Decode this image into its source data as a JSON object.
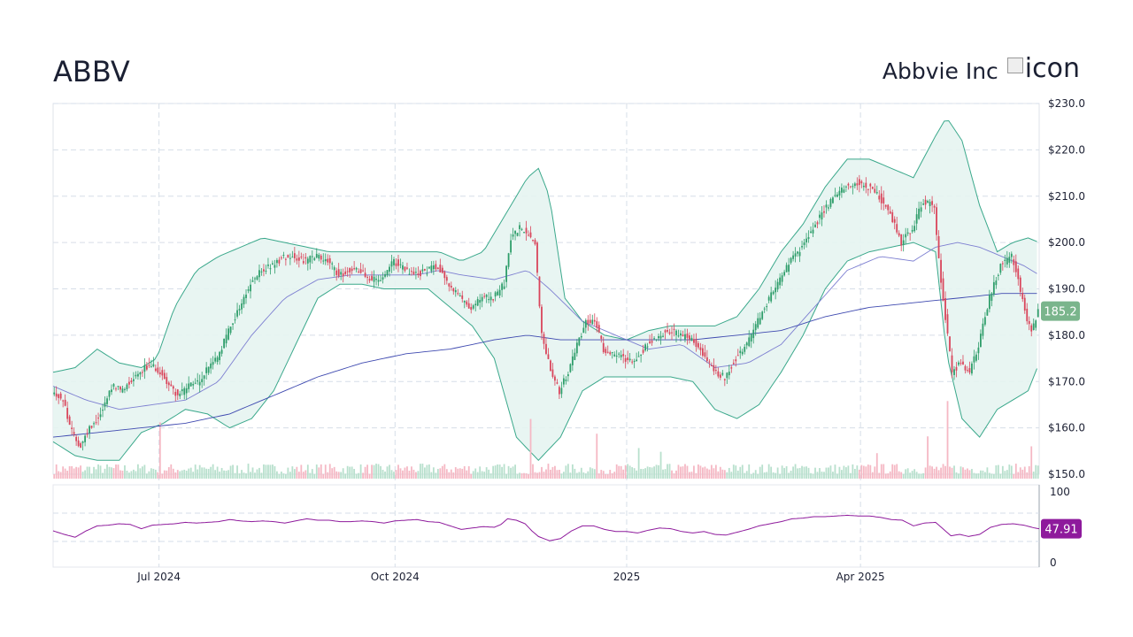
{
  "header": {
    "ticker": "ABBV",
    "company_name": "Abbvie Inc",
    "logo_alt": "icon"
  },
  "colors": {
    "up": "#26a69a",
    "down": "#ef5350",
    "up_candle": "#2f9e6b",
    "down_candle": "#d9455b",
    "bb_fill": "#e6f4f1",
    "bb_line": "#3aa88b",
    "ma_short": "#7d7fd1",
    "ma_long": "#3f4ab0",
    "rsi_line": "#8e1a9c",
    "price_badge": "#7ab58c",
    "rsi_badge": "#8e1a9c"
  },
  "chart_data": {
    "type": "candlestick",
    "title": "ABBV",
    "x_ticks": [
      "Jul 2024",
      "Oct 2024",
      "2025",
      "Apr 2025"
    ],
    "price_axis": {
      "ticks": [
        "$230.0",
        "$220.0",
        "$210.0",
        "$200.0",
        "$190.0",
        "$180.0",
        "$170.0",
        "$160.0",
        "$150.0"
      ],
      "ylim": [
        150,
        230
      ]
    },
    "last_price_label": "185.2",
    "rsi": {
      "ticks": [
        "100",
        "0"
      ],
      "ylim": [
        0,
        100
      ],
      "last_label": "47.91",
      "bands": [
        70,
        30
      ]
    },
    "close_path": [
      [
        0,
        168
      ],
      [
        5,
        166
      ],
      [
        9,
        159
      ],
      [
        13,
        156
      ],
      [
        17,
        160
      ],
      [
        22,
        163
      ],
      [
        27,
        169
      ],
      [
        32,
        168
      ],
      [
        37,
        171
      ],
      [
        42,
        173
      ],
      [
        47,
        173
      ],
      [
        52,
        170
      ],
      [
        57,
        167
      ],
      [
        62,
        169
      ],
      [
        67,
        170
      ],
      [
        72,
        174
      ],
      [
        75,
        175
      ],
      [
        80,
        181
      ],
      [
        85,
        186
      ],
      [
        90,
        191
      ],
      [
        95,
        194
      ],
      [
        100,
        195
      ],
      [
        105,
        197
      ],
      [
        110,
        197
      ],
      [
        115,
        196
      ],
      [
        120,
        197
      ],
      [
        125,
        196
      ],
      [
        130,
        193
      ],
      [
        135,
        194
      ],
      [
        140,
        194
      ],
      [
        145,
        192
      ],
      [
        150,
        192
      ],
      [
        155,
        196
      ],
      [
        160,
        194
      ],
      [
        165,
        193
      ],
      [
        170,
        194
      ],
      [
        175,
        195
      ],
      [
        180,
        191
      ],
      [
        185,
        188
      ],
      [
        190,
        186
      ],
      [
        195,
        188
      ],
      [
        200,
        188
      ],
      [
        205,
        191
      ],
      [
        208,
        201
      ],
      [
        212,
        203
      ],
      [
        216,
        202
      ],
      [
        219,
        200
      ],
      [
        222,
        180
      ],
      [
        226,
        173
      ],
      [
        230,
        168
      ],
      [
        234,
        172
      ],
      [
        238,
        178
      ],
      [
        242,
        183
      ],
      [
        246,
        183
      ],
      [
        250,
        177
      ],
      [
        255,
        176
      ],
      [
        260,
        175
      ],
      [
        265,
        175
      ],
      [
        270,
        178
      ],
      [
        275,
        180
      ],
      [
        280,
        181
      ],
      [
        285,
        180
      ],
      [
        290,
        179
      ],
      [
        295,
        176
      ],
      [
        300,
        172
      ],
      [
        305,
        171
      ],
      [
        310,
        175
      ],
      [
        315,
        178
      ],
      [
        320,
        183
      ],
      [
        325,
        188
      ],
      [
        330,
        192
      ],
      [
        335,
        196
      ],
      [
        340,
        199
      ],
      [
        345,
        203
      ],
      [
        350,
        207
      ],
      [
        355,
        210
      ],
      [
        360,
        212
      ],
      [
        365,
        213
      ],
      [
        370,
        212
      ],
      [
        375,
        210
      ],
      [
        380,
        206
      ],
      [
        385,
        200
      ],
      [
        390,
        203
      ],
      [
        395,
        209
      ],
      [
        400,
        208
      ],
      [
        402,
        196
      ],
      [
        405,
        184
      ],
      [
        408,
        172
      ],
      [
        412,
        174
      ],
      [
        416,
        172
      ],
      [
        420,
        178
      ],
      [
        425,
        188
      ],
      [
        430,
        195
      ],
      [
        435,
        197
      ],
      [
        438,
        192
      ],
      [
        441,
        185
      ],
      [
        444,
        181
      ],
      [
        447,
        185
      ]
    ],
    "bb_upper_path": [
      [
        0,
        172
      ],
      [
        10,
        173
      ],
      [
        20,
        177
      ],
      [
        30,
        174
      ],
      [
        40,
        173
      ],
      [
        47,
        175
      ],
      [
        55,
        186
      ],
      [
        65,
        194
      ],
      [
        75,
        197
      ],
      [
        85,
        199
      ],
      [
        95,
        201
      ],
      [
        105,
        200
      ],
      [
        115,
        199
      ],
      [
        125,
        198
      ],
      [
        135,
        198
      ],
      [
        145,
        198
      ],
      [
        155,
        198
      ],
      [
        165,
        198
      ],
      [
        175,
        198
      ],
      [
        185,
        196
      ],
      [
        195,
        198
      ],
      [
        205,
        206
      ],
      [
        215,
        214
      ],
      [
        220,
        216
      ],
      [
        225,
        210
      ],
      [
        232,
        188
      ],
      [
        240,
        183
      ],
      [
        250,
        180
      ],
      [
        260,
        179
      ],
      [
        270,
        181
      ],
      [
        280,
        182
      ],
      [
        290,
        182
      ],
      [
        300,
        182
      ],
      [
        310,
        184
      ],
      [
        320,
        190
      ],
      [
        330,
        198
      ],
      [
        340,
        204
      ],
      [
        350,
        212
      ],
      [
        360,
        218
      ],
      [
        370,
        218
      ],
      [
        380,
        216
      ],
      [
        390,
        214
      ],
      [
        400,
        223
      ],
      [
        405,
        227
      ],
      [
        412,
        222
      ],
      [
        420,
        208
      ],
      [
        428,
        198
      ],
      [
        435,
        200
      ],
      [
        442,
        201
      ],
      [
        447,
        200
      ]
    ],
    "bb_lower_path": [
      [
        0,
        157
      ],
      [
        10,
        154
      ],
      [
        20,
        153
      ],
      [
        30,
        153
      ],
      [
        40,
        159
      ],
      [
        50,
        161
      ],
      [
        60,
        164
      ],
      [
        70,
        163
      ],
      [
        80,
        160
      ],
      [
        90,
        162
      ],
      [
        100,
        168
      ],
      [
        110,
        178
      ],
      [
        120,
        188
      ],
      [
        130,
        191
      ],
      [
        140,
        191
      ],
      [
        150,
        190
      ],
      [
        160,
        190
      ],
      [
        170,
        190
      ],
      [
        180,
        186
      ],
      [
        190,
        182
      ],
      [
        200,
        175
      ],
      [
        210,
        158
      ],
      [
        220,
        153
      ],
      [
        230,
        158
      ],
      [
        240,
        168
      ],
      [
        250,
        171
      ],
      [
        260,
        171
      ],
      [
        270,
        171
      ],
      [
        280,
        171
      ],
      [
        290,
        170
      ],
      [
        300,
        164
      ],
      [
        310,
        162
      ],
      [
        320,
        165
      ],
      [
        330,
        172
      ],
      [
        340,
        180
      ],
      [
        350,
        190
      ],
      [
        360,
        196
      ],
      [
        370,
        198
      ],
      [
        380,
        199
      ],
      [
        390,
        200
      ],
      [
        400,
        198
      ],
      [
        405,
        176
      ],
      [
        412,
        162
      ],
      [
        420,
        158
      ],
      [
        428,
        164
      ],
      [
        435,
        166
      ],
      [
        442,
        168
      ],
      [
        447,
        174
      ]
    ],
    "ma_short_path": [
      [
        0,
        169
      ],
      [
        15,
        166
      ],
      [
        30,
        164
      ],
      [
        45,
        165
      ],
      [
        60,
        166
      ],
      [
        75,
        170
      ],
      [
        90,
        180
      ],
      [
        105,
        188
      ],
      [
        120,
        192
      ],
      [
        135,
        193
      ],
      [
        150,
        193
      ],
      [
        165,
        193
      ],
      [
        175,
        194
      ],
      [
        185,
        193
      ],
      [
        200,
        192
      ],
      [
        215,
        194
      ],
      [
        225,
        190
      ],
      [
        240,
        183
      ],
      [
        255,
        180
      ],
      [
        270,
        177
      ],
      [
        285,
        178
      ],
      [
        300,
        173
      ],
      [
        315,
        174
      ],
      [
        330,
        178
      ],
      [
        345,
        186
      ],
      [
        360,
        194
      ],
      [
        375,
        197
      ],
      [
        390,
        196
      ],
      [
        400,
        199
      ],
      [
        410,
        200
      ],
      [
        420,
        199
      ],
      [
        430,
        197
      ],
      [
        440,
        195
      ],
      [
        447,
        193
      ]
    ],
    "ma_long_path": [
      [
        0,
        158
      ],
      [
        20,
        159
      ],
      [
        40,
        160
      ],
      [
        60,
        161
      ],
      [
        80,
        163
      ],
      [
        100,
        167
      ],
      [
        120,
        171
      ],
      [
        140,
        174
      ],
      [
        160,
        176
      ],
      [
        180,
        177
      ],
      [
        200,
        179
      ],
      [
        215,
        180
      ],
      [
        230,
        179
      ],
      [
        250,
        179
      ],
      [
        270,
        179
      ],
      [
        290,
        179
      ],
      [
        310,
        180
      ],
      [
        330,
        181
      ],
      [
        350,
        184
      ],
      [
        370,
        186
      ],
      [
        390,
        187
      ],
      [
        410,
        188
      ],
      [
        430,
        189
      ],
      [
        447,
        189
      ]
    ],
    "rsi_path": [
      [
        0,
        45
      ],
      [
        5,
        40
      ],
      [
        10,
        36
      ],
      [
        15,
        45
      ],
      [
        20,
        52
      ],
      [
        25,
        53
      ],
      [
        30,
        55
      ],
      [
        35,
        54
      ],
      [
        40,
        48
      ],
      [
        45,
        53
      ],
      [
        50,
        54
      ],
      [
        55,
        55
      ],
      [
        60,
        57
      ],
      [
        65,
        56
      ],
      [
        70,
        57
      ],
      [
        75,
        58
      ],
      [
        80,
        61
      ],
      [
        85,
        59
      ],
      [
        90,
        58
      ],
      [
        95,
        59
      ],
      [
        100,
        58
      ],
      [
        105,
        56
      ],
      [
        110,
        59
      ],
      [
        115,
        62
      ],
      [
        120,
        60
      ],
      [
        125,
        60
      ],
      [
        130,
        58
      ],
      [
        135,
        58
      ],
      [
        140,
        59
      ],
      [
        145,
        58
      ],
      [
        150,
        56
      ],
      [
        155,
        59
      ],
      [
        160,
        60
      ],
      [
        165,
        61
      ],
      [
        170,
        58
      ],
      [
        175,
        57
      ],
      [
        180,
        52
      ],
      [
        185,
        47
      ],
      [
        190,
        49
      ],
      [
        195,
        51
      ],
      [
        200,
        50
      ],
      [
        203,
        54
      ],
      [
        206,
        62
      ],
      [
        210,
        60
      ],
      [
        214,
        55
      ],
      [
        217,
        45
      ],
      [
        220,
        37
      ],
      [
        225,
        31
      ],
      [
        230,
        34
      ],
      [
        235,
        45
      ],
      [
        240,
        52
      ],
      [
        245,
        52
      ],
      [
        250,
        47
      ],
      [
        255,
        44
      ],
      [
        260,
        44
      ],
      [
        265,
        42
      ],
      [
        270,
        46
      ],
      [
        275,
        49
      ],
      [
        280,
        48
      ],
      [
        285,
        44
      ],
      [
        290,
        42
      ],
      [
        295,
        44
      ],
      [
        300,
        40
      ],
      [
        305,
        39
      ],
      [
        310,
        43
      ],
      [
        315,
        47
      ],
      [
        320,
        52
      ],
      [
        325,
        55
      ],
      [
        330,
        58
      ],
      [
        335,
        62
      ],
      [
        340,
        63
      ],
      [
        345,
        65
      ],
      [
        350,
        65
      ],
      [
        355,
        66
      ],
      [
        360,
        67
      ],
      [
        365,
        66
      ],
      [
        370,
        66
      ],
      [
        375,
        64
      ],
      [
        380,
        61
      ],
      [
        385,
        60
      ],
      [
        390,
        52
      ],
      [
        395,
        56
      ],
      [
        400,
        57
      ],
      [
        403,
        49
      ],
      [
        407,
        38
      ],
      [
        411,
        40
      ],
      [
        415,
        37
      ],
      [
        420,
        40
      ],
      [
        425,
        50
      ],
      [
        430,
        54
      ],
      [
        435,
        55
      ],
      [
        440,
        53
      ],
      [
        445,
        49
      ],
      [
        447,
        48
      ]
    ],
    "volume_spikes": [
      [
        48,
        4.0
      ],
      [
        216,
        5.5
      ],
      [
        246,
        3.0
      ],
      [
        265,
        3.5
      ],
      [
        275,
        1.8
      ],
      [
        373,
        4.2
      ],
      [
        396,
        4.5
      ],
      [
        405,
        5.3
      ],
      [
        440,
        2.5
      ],
      [
        443,
        2.6
      ]
    ]
  }
}
